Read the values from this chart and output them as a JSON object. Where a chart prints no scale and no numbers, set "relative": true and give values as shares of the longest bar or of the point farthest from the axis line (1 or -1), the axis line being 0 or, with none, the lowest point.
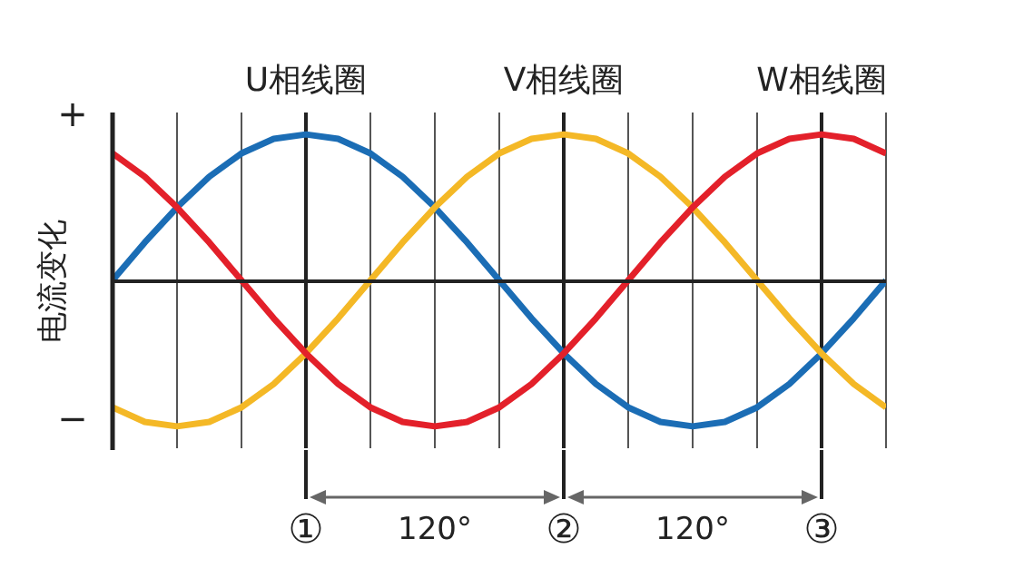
{
  "chart_data": {
    "type": "line",
    "relative": true,
    "ylabel": "电流变化",
    "categories": [
      null,
      null,
      null,
      null,
      null,
      null,
      null,
      null,
      null,
      null,
      null,
      null,
      null,
      null,
      null,
      null,
      null,
      null,
      null,
      null,
      null,
      null,
      null,
      null,
      null
    ],
    "grid": "x",
    "legend": false,
    "marker": "none",
    "line_style": "solid",
    "series": [
      {
        "name": "U相线圈",
        "color": "#1b6db5",
        "values": [
          0,
          0.26,
          0.5,
          0.71,
          0.87,
          0.97,
          1,
          0.97,
          0.87,
          0.71,
          0.5,
          0.26,
          0,
          -0.26,
          -0.5,
          -0.71,
          -0.87,
          -0.97,
          -1,
          -0.97,
          -0.87,
          -0.71,
          -0.5,
          -0.26,
          0
        ]
      },
      {
        "name": "V相线圈",
        "color": "#f4b826",
        "values": [
          -0.87,
          -0.97,
          -1,
          -0.97,
          -0.87,
          -0.71,
          -0.5,
          -0.26,
          0,
          0.26,
          0.5,
          0.71,
          0.87,
          0.97,
          1,
          0.97,
          0.87,
          0.71,
          0.5,
          0.26,
          0,
          -0.26,
          -0.5,
          -0.71,
          -0.87
        ]
      },
      {
        "name": "W相线圈",
        "color": "#e3202a",
        "values": [
          0.87,
          0.71,
          0.5,
          0.26,
          0,
          -0.26,
          -0.5,
          -0.71,
          -0.87,
          -0.97,
          -1,
          -0.97,
          -0.87,
          -0.71,
          -0.5,
          -0.26,
          0,
          0.26,
          0.5,
          0.71,
          0.87,
          0.97,
          1,
          0.97,
          0.87
        ]
      }
    ],
    "annotations": [
      "+",
      "−",
      "①",
      "②",
      "③",
      "120°",
      "120°"
    ]
  }
}
